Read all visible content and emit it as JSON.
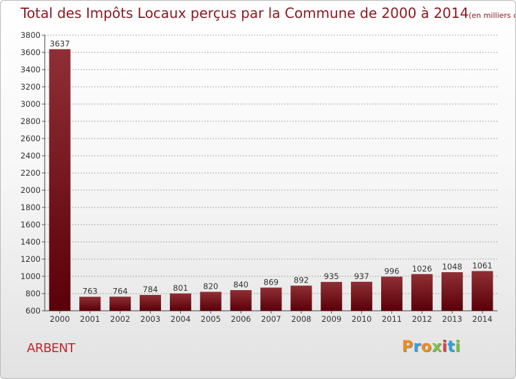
{
  "title": "Total des Impôts Locaux perçus par la Commune de 2000 à 2014",
  "unit": "(en milliers d'€)",
  "commune": "ARBENT",
  "logo": {
    "text": "Proxiti",
    "colors": [
      "#f08c1e",
      "#2ea3dc",
      "#f08c1e",
      "#7cc243",
      "#e43d3d",
      "#2ea3dc",
      "#7cc243"
    ]
  },
  "colors": {
    "bar_top": "#8f2f35",
    "bar_bottom": "#5a0008",
    "text": "#8b1a22",
    "grid": "#aaaaaa"
  },
  "chart_data": {
    "type": "bar",
    "title": "Total des Impôts Locaux perçus par la Commune de 2000 à 2014",
    "xlabel": "",
    "ylabel": "",
    "categories": [
      "2000",
      "2001",
      "2002",
      "2003",
      "2004",
      "2005",
      "2006",
      "2007",
      "2008",
      "2009",
      "2010",
      "2011",
      "2012",
      "2013",
      "2014"
    ],
    "values": [
      3637,
      763,
      764,
      784,
      801,
      820,
      840,
      869,
      892,
      935,
      937,
      996,
      1026,
      1048,
      1061
    ],
    "ylim": [
      600,
      3800
    ],
    "yticks": [
      600,
      800,
      1000,
      1200,
      1400,
      1600,
      1800,
      2000,
      2200,
      2400,
      2600,
      2800,
      3000,
      3200,
      3400,
      3600,
      3800
    ],
    "grid": true
  }
}
